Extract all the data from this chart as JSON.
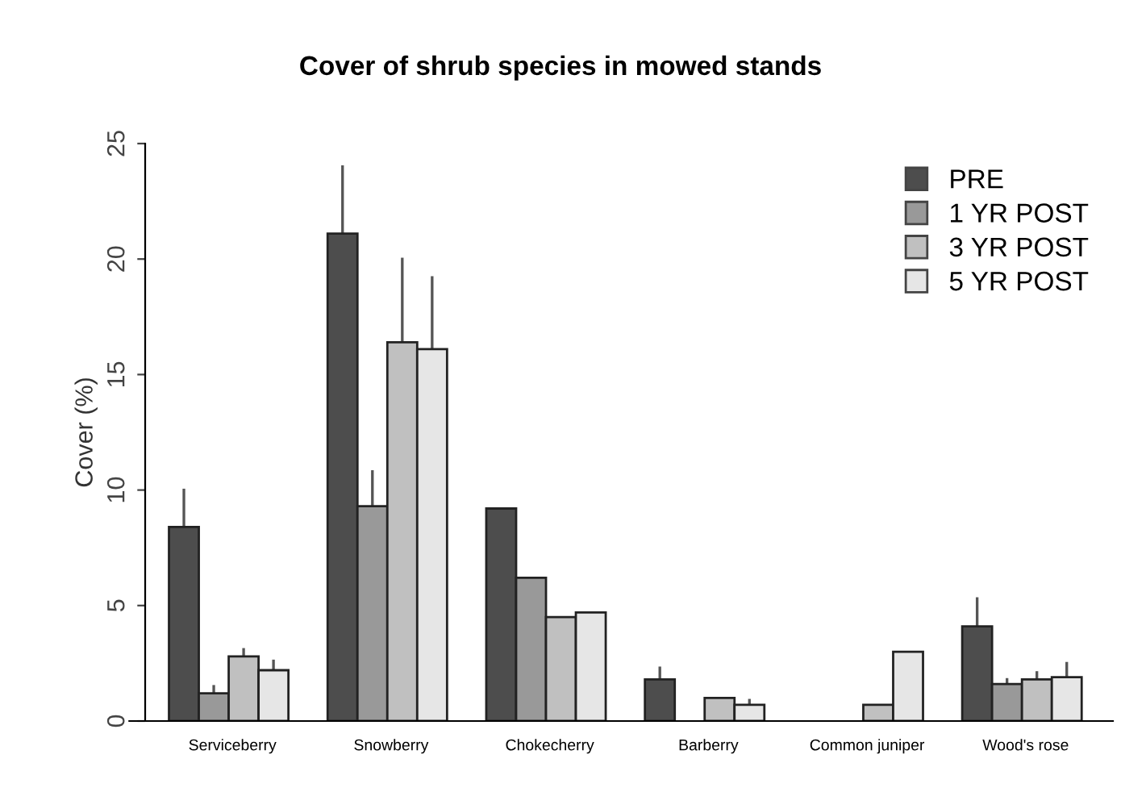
{
  "chart_data": {
    "type": "bar",
    "title": "Cover of shrub species in mowed stands",
    "ylabel": "Cover (%)",
    "categories": [
      "Serviceberry",
      "Snowberry",
      "Chokecherry",
      "Barberry",
      "Common juniper",
      "Wood's rose"
    ],
    "series": [
      {
        "name": "PRE",
        "color": "#4d4d4d",
        "values": [
          8.4,
          21.1,
          9.2,
          1.8,
          null,
          4.1
        ],
        "errors": [
          [
            8.4,
            10
          ],
          [
            21.1,
            24
          ],
          null,
          [
            1.8,
            2.3
          ],
          null,
          [
            4.1,
            5.3
          ]
        ]
      },
      {
        "name": "1 YR POST",
        "color": "#999999",
        "values": [
          1.2,
          9.3,
          6.2,
          null,
          null,
          1.6
        ],
        "errors": [
          [
            1.2,
            1.5
          ],
          [
            9.3,
            10.8
          ],
          null,
          null,
          null,
          [
            1.6,
            1.8
          ]
        ]
      },
      {
        "name": "3 YR POST",
        "color": "#c0c0c0",
        "values": [
          2.8,
          16.4,
          4.5,
          1,
          0.7,
          1.8
        ],
        "errors": [
          [
            2.8,
            3.1
          ],
          [
            16.4,
            20
          ],
          null,
          null,
          null,
          [
            1.8,
            2.1
          ]
        ]
      },
      {
        "name": "5 YR POST",
        "color": "#e6e6e6",
        "values": [
          2.2,
          16.1,
          4.7,
          0.7,
          3,
          1.9
        ],
        "errors": [
          [
            2.2,
            2.6
          ],
          [
            16.1,
            19.2
          ],
          null,
          [
            0.7,
            0.9
          ],
          null,
          [
            1.9,
            2.5
          ]
        ]
      }
    ],
    "ylim": [
      0,
      25
    ],
    "yticks": [
      0,
      5,
      10,
      15,
      20,
      25
    ],
    "grid": false,
    "legend": "top right"
  }
}
